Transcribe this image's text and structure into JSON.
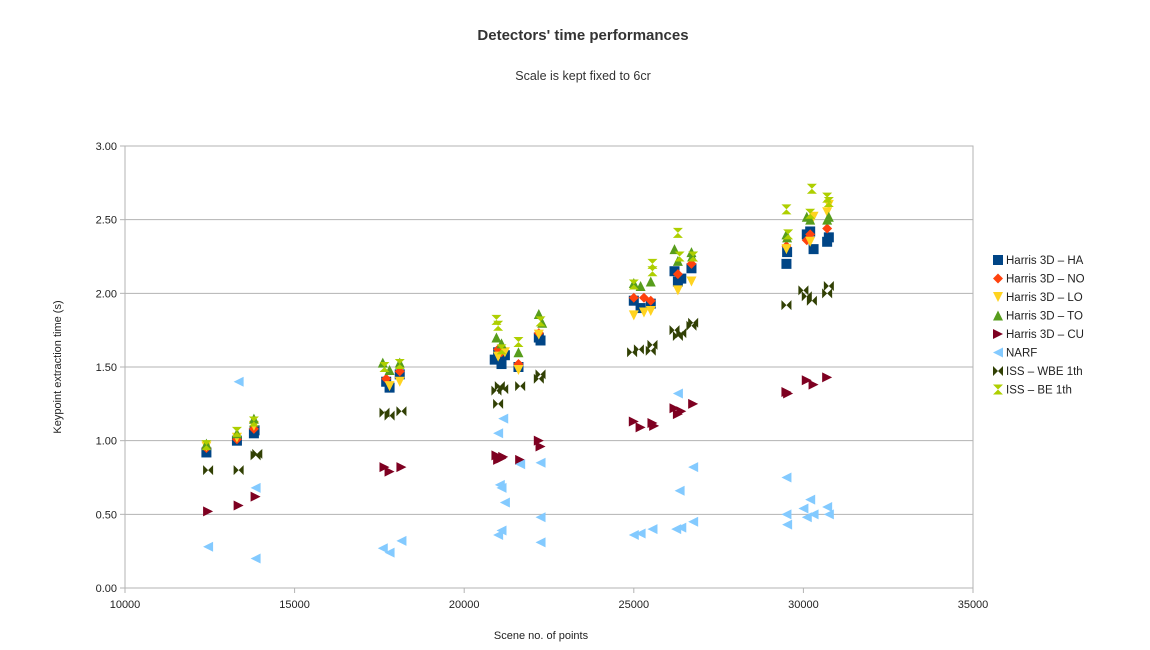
{
  "chart_data": {
    "type": "scatter",
    "title": "Detectors' time performances",
    "subtitle": "Scale is kept fixed to 6cr",
    "xlabel": "Scene no. of points",
    "ylabel": "Keypoint extraction time (s)",
    "xlim": [
      10000,
      35000
    ],
    "ylim": [
      0,
      3
    ],
    "xticks": [
      "10000",
      "15000",
      "20000",
      "25000",
      "30000",
      "35000"
    ],
    "yticks": [
      "0.00",
      "0.50",
      "1.00",
      "1.50",
      "2.00",
      "2.50",
      "3.00"
    ],
    "grid": "horizontal",
    "legend_position": "right",
    "series": [
      {
        "name": "Harris 3D – HA",
        "marker": "square",
        "color": "#004586",
        "points": [
          [
            12400,
            0.92
          ],
          [
            13300,
            1.0
          ],
          [
            13800,
            1.05
          ],
          [
            13820,
            1.07
          ],
          [
            17700,
            1.4
          ],
          [
            17800,
            1.36
          ],
          [
            18100,
            1.45
          ],
          [
            20900,
            1.55
          ],
          [
            21000,
            1.6
          ],
          [
            21100,
            1.52
          ],
          [
            21200,
            1.58
          ],
          [
            21600,
            1.5
          ],
          [
            22200,
            1.7
          ],
          [
            22250,
            1.68
          ],
          [
            25000,
            1.95
          ],
          [
            25200,
            1.9
          ],
          [
            25500,
            1.93
          ],
          [
            26200,
            2.15
          ],
          [
            26300,
            2.08
          ],
          [
            26400,
            2.1
          ],
          [
            26700,
            2.17
          ],
          [
            29500,
            2.2
          ],
          [
            29520,
            2.28
          ],
          [
            30100,
            2.4
          ],
          [
            30200,
            2.42
          ],
          [
            30300,
            2.3
          ],
          [
            30700,
            2.35
          ],
          [
            30750,
            2.38
          ]
        ]
      },
      {
        "name": "Harris 3D – NO",
        "marker": "diamond",
        "color": "#ff420e",
        "points": [
          [
            12400,
            0.95
          ],
          [
            13300,
            1.01
          ],
          [
            13800,
            1.08
          ],
          [
            17700,
            1.42
          ],
          [
            18100,
            1.47
          ],
          [
            21000,
            1.62
          ],
          [
            21100,
            1.6
          ],
          [
            21600,
            1.52
          ],
          [
            22200,
            1.73
          ],
          [
            25000,
            1.97
          ],
          [
            25300,
            1.97
          ],
          [
            25500,
            1.95
          ],
          [
            26300,
            2.13
          ],
          [
            26700,
            2.2
          ],
          [
            29500,
            2.32
          ],
          [
            30100,
            2.36
          ],
          [
            30200,
            2.4
          ],
          [
            30700,
            2.44
          ]
        ]
      },
      {
        "name": "Harris 3D – LO",
        "marker": "triangle-down",
        "color": "#ffd320",
        "points": [
          [
            12400,
            0.96
          ],
          [
            13300,
            1.02
          ],
          [
            13800,
            1.1
          ],
          [
            17800,
            1.37
          ],
          [
            18100,
            1.4
          ],
          [
            21000,
            1.57
          ],
          [
            21200,
            1.6
          ],
          [
            21600,
            1.48
          ],
          [
            22200,
            1.72
          ],
          [
            25000,
            1.85
          ],
          [
            25300,
            1.87
          ],
          [
            25500,
            1.88
          ],
          [
            26300,
            2.02
          ],
          [
            26700,
            2.08
          ],
          [
            29500,
            2.3
          ],
          [
            30200,
            2.35
          ],
          [
            30300,
            2.52
          ],
          [
            30700,
            2.55
          ],
          [
            30750,
            2.6
          ]
        ]
      },
      {
        "name": "Harris 3D – TO",
        "marker": "triangle-up",
        "color": "#579d1c",
        "points": [
          [
            12400,
            0.98
          ],
          [
            13300,
            1.05
          ],
          [
            13800,
            1.15
          ],
          [
            17600,
            1.53
          ],
          [
            17800,
            1.48
          ],
          [
            18100,
            1.53
          ],
          [
            20950,
            1.7
          ],
          [
            21100,
            1.66
          ],
          [
            21600,
            1.6
          ],
          [
            22200,
            1.86
          ],
          [
            22300,
            1.8
          ],
          [
            25000,
            2.07
          ],
          [
            25200,
            2.05
          ],
          [
            25500,
            2.08
          ],
          [
            26200,
            2.3
          ],
          [
            26300,
            2.22
          ],
          [
            26700,
            2.28
          ],
          [
            26720,
            2.25
          ],
          [
            29500,
            2.4
          ],
          [
            29520,
            2.38
          ],
          [
            30100,
            2.52
          ],
          [
            30200,
            2.5
          ],
          [
            30700,
            2.5
          ],
          [
            30750,
            2.52
          ]
        ]
      },
      {
        "name": "Harris 3D – CU",
        "marker": "triangle-right",
        "color": "#7e0021",
        "points": [
          [
            12450,
            0.52
          ],
          [
            13350,
            0.56
          ],
          [
            13850,
            0.62
          ],
          [
            17650,
            0.82
          ],
          [
            17800,
            0.79
          ],
          [
            18150,
            0.82
          ],
          [
            20950,
            0.9
          ],
          [
            21000,
            0.87
          ],
          [
            21100,
            0.88
          ],
          [
            21150,
            0.89
          ],
          [
            21650,
            0.87
          ],
          [
            22200,
            1.0
          ],
          [
            22250,
            0.96
          ],
          [
            25000,
            1.13
          ],
          [
            25200,
            1.09
          ],
          [
            25550,
            1.12
          ],
          [
            25600,
            1.1
          ],
          [
            26200,
            1.22
          ],
          [
            26300,
            1.18
          ],
          [
            26400,
            1.2
          ],
          [
            26750,
            1.25
          ],
          [
            29500,
            1.33
          ],
          [
            29550,
            1.32
          ],
          [
            30100,
            1.41
          ],
          [
            30300,
            1.38
          ],
          [
            30700,
            1.43
          ]
        ]
      },
      {
        "name": "NARF",
        "marker": "triangle-left",
        "color": "#83caff",
        "points": [
          [
            12450,
            0.28
          ],
          [
            13350,
            1.4
          ],
          [
            13850,
            0.68
          ],
          [
            13850,
            0.2
          ],
          [
            17600,
            0.27
          ],
          [
            17800,
            0.24
          ],
          [
            18150,
            0.32
          ],
          [
            21000,
            1.05
          ],
          [
            21050,
            0.7
          ],
          [
            21100,
            0.68
          ],
          [
            21000,
            0.36
          ],
          [
            21100,
            0.39
          ],
          [
            21150,
            1.15
          ],
          [
            21200,
            0.58
          ],
          [
            21650,
            0.84
          ],
          [
            22250,
            0.85
          ],
          [
            22250,
            0.48
          ],
          [
            22250,
            0.31
          ],
          [
            25000,
            0.36
          ],
          [
            25200,
            0.37
          ],
          [
            25550,
            0.4
          ],
          [
            26300,
            1.32
          ],
          [
            26350,
            0.66
          ],
          [
            26250,
            0.4
          ],
          [
            26400,
            0.41
          ],
          [
            26750,
            0.82
          ],
          [
            26750,
            0.45
          ],
          [
            29500,
            0.75
          ],
          [
            29500,
            0.5
          ],
          [
            29520,
            0.43
          ],
          [
            30000,
            0.54
          ],
          [
            30100,
            0.48
          ],
          [
            30200,
            0.6
          ],
          [
            30300,
            0.5
          ],
          [
            30700,
            0.55
          ],
          [
            30750,
            0.5
          ]
        ]
      },
      {
        "name": "ISS – WBE 1th",
        "marker": "bowtie",
        "color": "#314004",
        "points": [
          [
            12450,
            0.8
          ],
          [
            13350,
            0.8
          ],
          [
            13850,
            0.9
          ],
          [
            13900,
            0.91
          ],
          [
            17650,
            1.19
          ],
          [
            17800,
            1.17
          ],
          [
            18150,
            1.2
          ],
          [
            20950,
            1.34
          ],
          [
            21000,
            1.25
          ],
          [
            21050,
            1.37
          ],
          [
            21150,
            1.35
          ],
          [
            21650,
            1.37
          ],
          [
            22200,
            1.42
          ],
          [
            22250,
            1.45
          ],
          [
            24950,
            1.6
          ],
          [
            25150,
            1.62
          ],
          [
            25500,
            1.61
          ],
          [
            25550,
            1.65
          ],
          [
            26200,
            1.75
          ],
          [
            26300,
            1.71
          ],
          [
            26400,
            1.73
          ],
          [
            26700,
            1.78
          ],
          [
            26750,
            1.8
          ],
          [
            29500,
            1.92
          ],
          [
            30000,
            2.02
          ],
          [
            30100,
            1.98
          ],
          [
            30250,
            1.95
          ],
          [
            30700,
            2.0
          ],
          [
            30750,
            2.05
          ]
        ]
      },
      {
        "name": "ISS – BE 1th",
        "marker": "hourglass",
        "color": "#aecf00",
        "points": [
          [
            12400,
            0.97
          ],
          [
            13300,
            1.06
          ],
          [
            13800,
            1.13
          ],
          [
            17650,
            1.5
          ],
          [
            18100,
            1.52
          ],
          [
            20950,
            1.82
          ],
          [
            21000,
            1.78
          ],
          [
            21100,
            1.62
          ],
          [
            21600,
            1.67
          ],
          [
            22250,
            1.81
          ],
          [
            25000,
            2.06
          ],
          [
            25550,
            2.2
          ],
          [
            25550,
            2.15
          ],
          [
            26300,
            2.41
          ],
          [
            26350,
            2.25
          ],
          [
            26750,
            2.25
          ],
          [
            29500,
            2.57
          ],
          [
            29550,
            2.4
          ],
          [
            30200,
            2.54
          ],
          [
            30250,
            2.71
          ],
          [
            30700,
            2.65
          ],
          [
            30750,
            2.62
          ]
        ]
      }
    ]
  }
}
